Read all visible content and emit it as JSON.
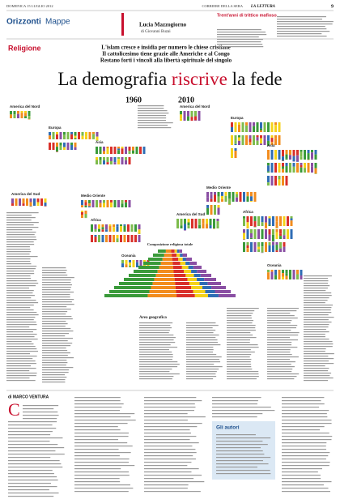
{
  "header": {
    "date": "DOMENICA 15 LUGLIO 2012",
    "paper": "CORRIERE DELLA SERA",
    "supplement": "LA LETTURA",
    "page": "9"
  },
  "section": {
    "name": "Orizzonti",
    "sub": "Mappe"
  },
  "teaser": {
    "title": "Trent'anni di trittico mafioso",
    "author": "Lucia Mazzogiorno",
    "coauthor": "di Giovanni Buzai"
  },
  "topic": "Religione",
  "subheads": [
    "L'islam cresce e insidia per numero le chiese cristiane",
    "Il cattolicesimo tiene grazie alle Americhe e al Congo",
    "Restano forti i vincoli alla libertà spirituale del singolo"
  ],
  "title": {
    "before": "La demografia",
    "highlight": "riscrive",
    "after": "la fede"
  },
  "infographic": {
    "years": [
      "1960",
      "2010"
    ],
    "regions": [
      "America del Nord",
      "Europa",
      "Asia",
      "Medio Oriente",
      "America del Sud",
      "Africa",
      "Oceania"
    ],
    "center_label": "Composizione religiosa totale",
    "legend_label": "Area geografica"
  },
  "byline": "di MARCO VENTURA",
  "authors_box": {
    "title": "Gli autori"
  }
}
